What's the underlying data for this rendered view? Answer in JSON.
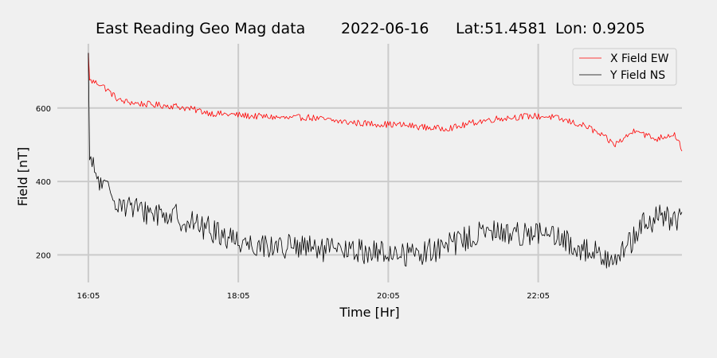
{
  "figure": {
    "title_left": "East Reading Geo Mag data",
    "title_date": "2022-06-16",
    "title_lat": "Lat:51.4581",
    "title_lon": "Lon: 0.9205"
  },
  "chart_data": {
    "type": "line",
    "xlabel": "Time  [Hr]",
    "ylabel": "Field  [nT]",
    "x_range_hours": [
      15.67,
      24.0
    ],
    "xlim_labels": [
      "16:05",
      "18:05",
      "20:05",
      "22:05"
    ],
    "x_ticks_hours": [
      16.0833,
      18.0833,
      20.0833,
      22.0833
    ],
    "ylim": [
      125,
      775
    ],
    "y_ticks": [
      200,
      400,
      600
    ],
    "y_tick_labels": [
      "200",
      "400",
      "600"
    ],
    "grid": true,
    "legend": "top-right",
    "series": [
      {
        "name": "X Field EW",
        "color": "#ff0000",
        "x_hours": [
          16.0833,
          16.1,
          16.25,
          16.5,
          16.75,
          17.0,
          17.25,
          17.5,
          17.75,
          18.0,
          18.25,
          18.5,
          18.75,
          19.0,
          19.25,
          19.5,
          19.75,
          20.0,
          20.25,
          20.5,
          20.75,
          21.0,
          21.25,
          21.5,
          21.75,
          22.0,
          22.25,
          22.5,
          22.75,
          23.0,
          23.1,
          23.25,
          23.4,
          23.5,
          23.65,
          23.8,
          23.9,
          24.0
        ],
        "values": [
          750,
          675,
          665,
          620,
          612,
          608,
          605,
          595,
          585,
          582,
          578,
          576,
          572,
          575,
          568,
          562,
          558,
          556,
          554,
          549,
          544,
          548,
          562,
          570,
          575,
          578,
          576,
          563,
          548,
          515,
          500,
          520,
          545,
          528,
          515,
          525,
          530,
          490
        ],
        "noise": 9
      },
      {
        "name": "Y Field NS",
        "color": "#000000",
        "x_hours": [
          16.0833,
          16.1,
          16.25,
          16.5,
          16.75,
          17.0,
          17.25,
          17.5,
          17.75,
          18.0,
          18.25,
          18.5,
          18.75,
          19.0,
          19.25,
          19.5,
          19.75,
          20.0,
          20.25,
          20.5,
          20.75,
          21.0,
          21.25,
          21.5,
          21.75,
          22.0,
          22.25,
          22.5,
          22.75,
          23.0,
          23.25,
          23.5,
          23.75,
          24.0
        ],
        "values": [
          750,
          455,
          390,
          345,
          320,
          315,
          305,
          285,
          265,
          245,
          230,
          225,
          222,
          218,
          212,
          210,
          210,
          205,
          203,
          205,
          215,
          235,
          255,
          262,
          258,
          262,
          250,
          230,
          210,
          195,
          215,
          285,
          305,
          290
        ],
        "noise": 35
      }
    ]
  }
}
